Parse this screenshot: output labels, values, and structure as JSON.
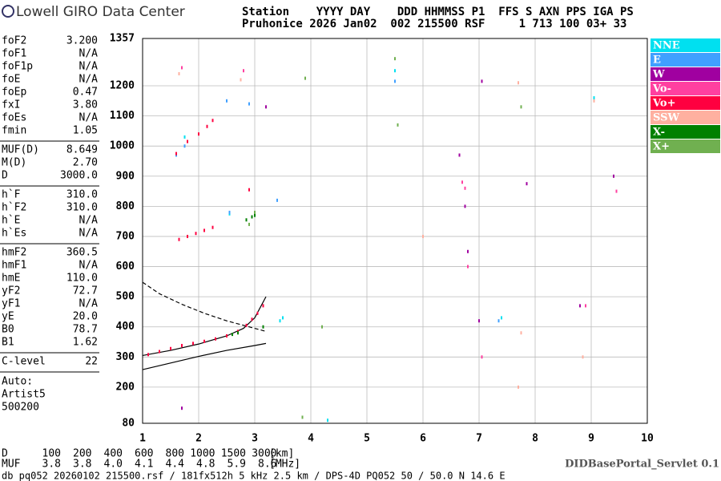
{
  "header": {
    "brand": "Lowell GIRO Data Center",
    "station_line_1": "Station    YYYY DAY    DDD HHMMSS P1  FFS S AXN PPS IGA PS",
    "station_line_2": "Pruhonice 2026 Jan02  002 215500 RSF     1 713 100 03+ 33"
  },
  "parameters": [
    [
      [
        "foF2",
        "3.200"
      ],
      [
        "foF1",
        "N/A"
      ],
      [
        "foF1p",
        "N/A"
      ],
      [
        "foE",
        "N/A"
      ],
      [
        "foEp",
        "0.47"
      ],
      [
        "fxI",
        "3.80"
      ],
      [
        "foEs",
        "N/A"
      ],
      [
        "fmin",
        "1.05"
      ]
    ],
    [
      [
        "MUF(D)",
        "8.649"
      ],
      [
        "M(D)",
        "2.70"
      ],
      [
        "D",
        "3000.0"
      ]
    ],
    [
      [
        "h`F",
        "310.0"
      ],
      [
        "h`F2",
        "310.0"
      ],
      [
        "h`E",
        "N/A"
      ],
      [
        "h`Es",
        "N/A"
      ]
    ],
    [
      [
        "hmF2",
        "360.5"
      ],
      [
        "hmF1",
        "N/A"
      ],
      [
        "hmE",
        "110.0"
      ],
      [
        "yF2",
        "72.7"
      ],
      [
        "yF1",
        "N/A"
      ],
      [
        "yE",
        "20.0"
      ],
      [
        "B0",
        "78.7"
      ],
      [
        "B1",
        "1.62"
      ]
    ],
    [
      [
        "C-level",
        "22"
      ]
    ]
  ],
  "scaling": [
    "Auto:",
    "Artist5",
    "500200"
  ],
  "muf_table": {
    "d_label": "D",
    "d": [
      "100",
      "200",
      "400",
      "600",
      "800",
      "1000",
      "1500",
      "3000"
    ],
    "d_unit": "[km]",
    "muf_label": "MUF",
    "muf": [
      "3.8",
      "3.8",
      "4.0",
      "4.1",
      "4.4",
      "4.8",
      "5.9",
      "8.6"
    ],
    "muf_unit": "[MHz]"
  },
  "footer": {
    "source": "db pq052 20260102 215500.rsf / 181fx512h 5 kHz 2.5 km / DPS-4D PQ052 50 / 50.0 N 14.6 E",
    "servlet": "DIDBasePortal_Servlet 0.1"
  },
  "chart_data": {
    "type": "scatter",
    "xlim": [
      1,
      10
    ],
    "xticks": [
      1,
      2,
      3,
      4,
      5,
      6,
      7,
      8,
      9,
      10
    ],
    "ylim": [
      80,
      1357
    ],
    "yticks": [
      80,
      200,
      300,
      400,
      500,
      600,
      700,
      800,
      900,
      1000,
      1100,
      1200,
      1357
    ],
    "grid": true,
    "series": [
      {
        "name": "NNE",
        "color": "#00e0f0",
        "x": [
          1.75,
          2.55,
          3.45,
          3.5,
          5.5,
          7.4,
          9.05,
          4.3
        ],
        "values": [
          1030,
          775,
          420,
          430,
          1250,
          430,
          1160,
          90
        ]
      },
      {
        "name": "E",
        "color": "#40a0ff",
        "x": [
          1.6,
          1.75,
          2.5,
          2.55,
          2.9,
          3.4,
          5.5,
          7.35
        ],
        "values": [
          970,
          1000,
          1150,
          780,
          1140,
          820,
          1215,
          420
        ]
      },
      {
        "name": "W",
        "color": "#a000a0",
        "x": [
          6.65,
          6.75,
          6.8,
          7.05,
          7.0,
          8.8,
          9.4,
          7.85,
          1.7,
          3.2
        ],
        "values": [
          970,
          800,
          650,
          1215,
          420,
          470,
          900,
          875,
          130,
          1130
        ]
      },
      {
        "name": "Vo-",
        "color": "#ff40a0",
        "x": [
          1.7,
          2.8,
          6.75,
          6.7,
          9.45,
          7.05,
          6.8,
          8.9
        ],
        "values": [
          1260,
          1250,
          860,
          880,
          850,
          300,
          600,
          470
        ]
      },
      {
        "name": "Vo+",
        "color": "#ff0040",
        "x": [
          1.1,
          1.3,
          1.5,
          1.7,
          1.9,
          2.1,
          2.3,
          2.5,
          2.7,
          2.85,
          2.95,
          3.05,
          3.15,
          1.65,
          1.8,
          1.95,
          2.1,
          2.25,
          1.6,
          1.8,
          2.0,
          2.15,
          2.25,
          2.9
        ],
        "values": [
          308,
          318,
          328,
          338,
          345,
          352,
          360,
          370,
          385,
          405,
          425,
          445,
          470,
          690,
          700,
          710,
          720,
          730,
          975,
          1015,
          1040,
          1065,
          1085,
          855
        ]
      },
      {
        "name": "SSW",
        "color": "#ffb0a0",
        "x": [
          1.65,
          2.75,
          7.7,
          7.75,
          9.05,
          8.85,
          6.0,
          7.7
        ],
        "values": [
          1240,
          1220,
          1210,
          380,
          1150,
          300,
          700,
          200
        ]
      },
      {
        "name": "X-",
        "color": "#008000",
        "x": [
          2.85,
          2.95,
          3.0,
          2.7,
          2.6,
          3.15
        ],
        "values": [
          755,
          765,
          770,
          380,
          375,
          400
        ]
      },
      {
        "name": "X+",
        "color": "#70b050",
        "x": [
          2.9,
          3.0,
          5.5,
          5.55,
          3.85,
          4.2,
          3.9,
          7.75
        ],
        "values": [
          740,
          780,
          1290,
          1070,
          100,
          400,
          1225,
          1130
        ]
      }
    ],
    "profiles": [
      {
        "style": "solid",
        "x": [
          1,
          1.5,
          2,
          2.5,
          2.8,
          3,
          3.2
        ],
        "values": [
          305,
          322,
          343,
          370,
          395,
          430,
          500
        ]
      },
      {
        "style": "solid",
        "x": [
          1,
          1.5,
          2,
          2.5,
          3,
          3.2
        ],
        "values": [
          258,
          280,
          302,
          322,
          338,
          345
        ]
      },
      {
        "style": "dashed",
        "x": [
          1,
          1.3,
          1.7,
          2.1,
          2.5,
          2.8,
          3.1,
          3.2
        ],
        "values": [
          548,
          510,
          475,
          445,
          420,
          405,
          390,
          385
        ]
      }
    ]
  }
}
